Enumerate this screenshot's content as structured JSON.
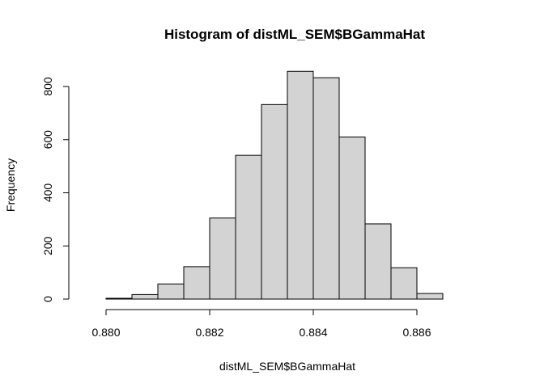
{
  "chart_data": {
    "type": "bar",
    "title": "Histogram of distML_SEM$BGammaHat",
    "xlabel": "distML_SEM$BGammaHat",
    "ylabel": "Frequency",
    "bins": [
      {
        "x0": 0.88,
        "x1": 0.8805,
        "count": 3
      },
      {
        "x0": 0.8805,
        "x1": 0.881,
        "count": 17
      },
      {
        "x0": 0.881,
        "x1": 0.8815,
        "count": 57
      },
      {
        "x0": 0.8815,
        "x1": 0.882,
        "count": 122
      },
      {
        "x0": 0.882,
        "x1": 0.8825,
        "count": 305
      },
      {
        "x0": 0.8825,
        "x1": 0.883,
        "count": 541
      },
      {
        "x0": 0.883,
        "x1": 0.8835,
        "count": 732
      },
      {
        "x0": 0.8835,
        "x1": 0.884,
        "count": 857
      },
      {
        "x0": 0.884,
        "x1": 0.8845,
        "count": 833
      },
      {
        "x0": 0.8845,
        "x1": 0.885,
        "count": 610
      },
      {
        "x0": 0.885,
        "x1": 0.8855,
        "count": 283
      },
      {
        "x0": 0.8855,
        "x1": 0.886,
        "count": 118
      },
      {
        "x0": 0.886,
        "x1": 0.8865,
        "count": 21
      }
    ],
    "xlim": [
      0.8795,
      0.8875
    ],
    "ylim": [
      0,
      900
    ],
    "xticks": [
      0.88,
      0.882,
      0.884,
      0.886
    ],
    "xtick_labels": [
      "0.880",
      "0.882",
      "0.884",
      "0.886"
    ],
    "yticks": [
      0,
      200,
      400,
      600,
      800
    ],
    "ytick_labels": [
      "0",
      "200",
      "400",
      "600",
      "800"
    ],
    "bar_color": "#d3d3d3",
    "edge_color": "#000000",
    "grid": false
  }
}
